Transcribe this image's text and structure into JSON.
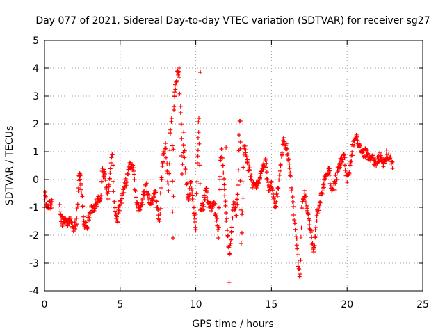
{
  "chart_data": {
    "type": "scatter",
    "title": "Day 077 of 2021, Sidereal Day-to-day VTEC variation (SDTVAR) for receiver sg27",
    "xlabel": "GPS time / hours",
    "ylabel": "SDTVAR / TECUs",
    "xlim": [
      0,
      25
    ],
    "ylim": [
      -4,
      5
    ],
    "xticks": [
      "0",
      "5",
      "10",
      "15",
      "20",
      "25"
    ],
    "yticks": [
      "-4",
      "-3",
      "-2",
      "-1",
      "0",
      "1",
      "2",
      "3",
      "4",
      "5"
    ],
    "grid": true,
    "marker": "plus",
    "color": "#ff0000",
    "series": [
      {
        "name": "SDTVAR",
        "points": [
          [
            0.0,
            -1.0
          ],
          [
            0.05,
            -0.45
          ],
          [
            0.1,
            -0.9
          ],
          [
            0.2,
            -1.0
          ],
          [
            0.3,
            -0.8
          ],
          [
            0.4,
            -0.9
          ],
          [
            0.5,
            -0.8
          ],
          [
            1.0,
            -0.9
          ],
          [
            1.1,
            -1.3
          ],
          [
            1.2,
            -1.6
          ],
          [
            1.3,
            -1.4
          ],
          [
            1.5,
            -1.6
          ],
          [
            1.7,
            -1.5
          ],
          [
            1.9,
            -1.7
          ],
          [
            2.1,
            -1.6
          ],
          [
            2.25,
            -0.3
          ],
          [
            2.3,
            0.1
          ],
          [
            2.35,
            0.2
          ],
          [
            2.4,
            -0.2
          ],
          [
            2.5,
            -0.6
          ],
          [
            2.6,
            -1.5
          ],
          [
            2.8,
            -1.7
          ],
          [
            3.0,
            -1.2
          ],
          [
            3.2,
            -1.0
          ],
          [
            3.5,
            -0.8
          ],
          [
            3.7,
            -0.7
          ],
          [
            3.8,
            0.3
          ],
          [
            4.0,
            0.2
          ],
          [
            4.2,
            -0.7
          ],
          [
            4.4,
            0.6
          ],
          [
            4.5,
            0.9
          ],
          [
            4.6,
            -0.8
          ],
          [
            4.8,
            -1.5
          ],
          [
            5.0,
            -0.9
          ],
          [
            5.3,
            -0.3
          ],
          [
            5.5,
            0.2
          ],
          [
            5.7,
            0.6
          ],
          [
            5.9,
            0.3
          ],
          [
            6.0,
            -0.4
          ],
          [
            6.1,
            -0.9
          ],
          [
            6.3,
            -1.1
          ],
          [
            6.5,
            -0.7
          ],
          [
            6.7,
            -0.2
          ],
          [
            6.9,
            -0.7
          ],
          [
            7.1,
            -0.9
          ],
          [
            7.3,
            -0.4
          ],
          [
            7.5,
            -1.1
          ],
          [
            7.6,
            -1.5
          ],
          [
            7.7,
            -0.3
          ],
          [
            7.8,
            0.6
          ],
          [
            7.9,
            1.0
          ],
          [
            8.0,
            1.3
          ],
          [
            8.1,
            0.3
          ],
          [
            8.2,
            -0.4
          ],
          [
            8.3,
            1.7
          ],
          [
            8.4,
            2.2
          ],
          [
            8.5,
            -2.1
          ],
          [
            8.55,
            2.5
          ],
          [
            8.6,
            3.0
          ],
          [
            8.7,
            3.5
          ],
          [
            8.8,
            3.9
          ],
          [
            8.9,
            4.0
          ],
          [
            9.0,
            2.4
          ],
          [
            9.1,
            0.2
          ],
          [
            9.2,
            1.7
          ],
          [
            9.3,
            0.4
          ],
          [
            9.5,
            -0.7
          ],
          [
            9.7,
            -0.1
          ],
          [
            9.9,
            -1.3
          ],
          [
            10.0,
            -1.8
          ],
          [
            10.1,
            0.6
          ],
          [
            10.15,
            1.5
          ],
          [
            10.2,
            2.2
          ],
          [
            10.3,
            -1.1
          ],
          [
            10.5,
            -0.9
          ],
          [
            10.7,
            -0.4
          ],
          [
            10.9,
            -1.0
          ],
          [
            11.2,
            -0.9
          ],
          [
            11.4,
            -1.4
          ],
          [
            11.5,
            -2.1
          ],
          [
            11.6,
            0.0
          ],
          [
            11.7,
            1.1
          ],
          [
            11.8,
            0.5
          ],
          [
            12.0,
            -1.2
          ],
          [
            12.2,
            -2.7
          ],
          [
            12.3,
            -2.3
          ],
          [
            12.5,
            -0.8
          ],
          [
            12.7,
            -1.3
          ],
          [
            12.8,
            -0.2
          ],
          [
            12.9,
            2.1
          ],
          [
            13.0,
            -2.3
          ],
          [
            13.2,
            1.2
          ],
          [
            13.4,
            0.6
          ],
          [
            13.6,
            0.1
          ],
          [
            13.8,
            -0.2
          ],
          [
            14.0,
            -0.3
          ],
          [
            14.2,
            -0.1
          ],
          [
            14.4,
            0.4
          ],
          [
            14.6,
            0.7
          ],
          [
            14.8,
            -0.4
          ],
          [
            15.0,
            -0.1
          ],
          [
            15.2,
            -1.0
          ],
          [
            15.4,
            -0.6
          ],
          [
            15.6,
            0.5
          ],
          [
            15.8,
            1.5
          ],
          [
            16.0,
            1.1
          ],
          [
            16.2,
            0.4
          ],
          [
            16.4,
            -0.8
          ],
          [
            16.6,
            -1.8
          ],
          [
            16.8,
            -3.2
          ],
          [
            16.9,
            -3.4
          ],
          [
            17.0,
            -1.0
          ],
          [
            17.2,
            -0.4
          ],
          [
            17.4,
            -1.2
          ],
          [
            17.6,
            -1.9
          ],
          [
            17.8,
            -2.6
          ],
          [
            18.0,
            -1.3
          ],
          [
            18.2,
            -0.8
          ],
          [
            18.4,
            -0.3
          ],
          [
            18.6,
            0.1
          ],
          [
            18.8,
            0.4
          ],
          [
            19.0,
            -0.4
          ],
          [
            19.2,
            -0.1
          ],
          [
            19.4,
            0.3
          ],
          [
            19.6,
            0.7
          ],
          [
            19.8,
            0.9
          ],
          [
            20.0,
            -0.1
          ],
          [
            20.2,
            0.5
          ],
          [
            20.4,
            1.2
          ],
          [
            20.6,
            1.5
          ],
          [
            20.8,
            1.3
          ],
          [
            21.0,
            1.0
          ],
          [
            21.3,
            0.9
          ],
          [
            21.6,
            0.8
          ],
          [
            21.9,
            0.6
          ],
          [
            22.2,
            0.8
          ],
          [
            22.4,
            0.6
          ],
          [
            22.6,
            0.9
          ],
          [
            22.8,
            0.8
          ],
          [
            23.0,
            0.4
          ]
        ]
      }
    ],
    "isolated_points": [
      [
        10.3,
        3.85
      ],
      [
        12.2,
        -3.7
      ],
      [
        12.0,
        1.15
      ],
      [
        12.95,
        1.35
      ],
      [
        12.95,
        2.1
      ]
    ]
  }
}
